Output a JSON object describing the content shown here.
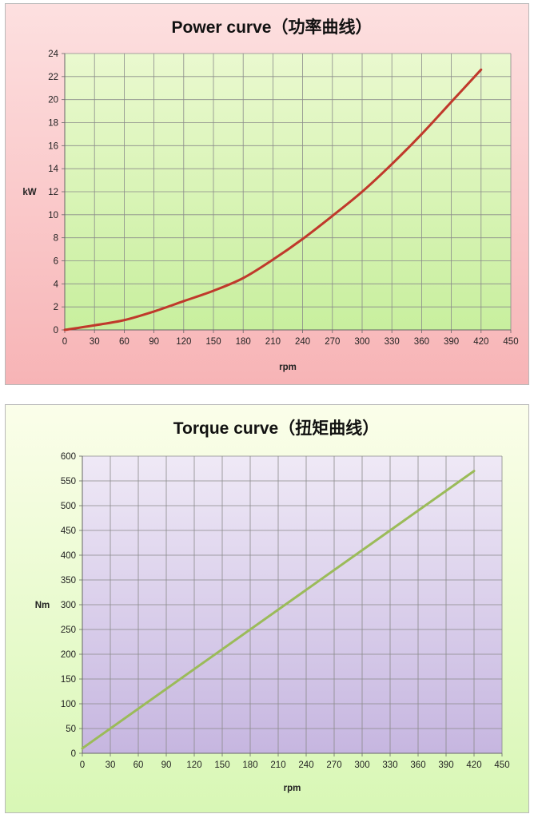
{
  "chart_data": [
    {
      "type": "line",
      "title": "Power curve（功率曲线）",
      "xlabel": "rpm",
      "ylabel": "kW",
      "xlim": [
        0,
        450
      ],
      "ylim": [
        0,
        24
      ],
      "xticks": [
        0,
        30,
        60,
        90,
        120,
        150,
        180,
        210,
        240,
        270,
        300,
        330,
        360,
        390,
        420,
        450
      ],
      "yticks": [
        0,
        2,
        4,
        6,
        8,
        10,
        12,
        14,
        16,
        18,
        20,
        22,
        24
      ],
      "grid": true,
      "series": [
        {
          "color": "#c0392b",
          "x": [
            0,
            30,
            60,
            90,
            120,
            150,
            180,
            210,
            240,
            270,
            300,
            330,
            360,
            390,
            420
          ],
          "y": [
            0,
            0.4,
            0.85,
            1.6,
            2.5,
            3.4,
            4.5,
            6.1,
            7.9,
            9.9,
            12.0,
            14.4,
            17.0,
            19.8,
            22.6
          ]
        }
      ]
    },
    {
      "type": "line",
      "title": "Torque curve（扭矩曲线）",
      "xlabel": "rpm",
      "ylabel": "Nm",
      "xlim": [
        0,
        450
      ],
      "ylim": [
        0,
        600
      ],
      "xticks": [
        0,
        30,
        60,
        90,
        120,
        150,
        180,
        210,
        240,
        270,
        300,
        330,
        360,
        390,
        420,
        450
      ],
      "yticks": [
        0,
        50,
        100,
        150,
        200,
        250,
        300,
        350,
        400,
        450,
        500,
        550,
        600
      ],
      "grid": true,
      "series": [
        {
          "color": "#9bbb59",
          "x": [
            0,
            420
          ],
          "y": [
            10,
            570
          ]
        }
      ]
    }
  ]
}
